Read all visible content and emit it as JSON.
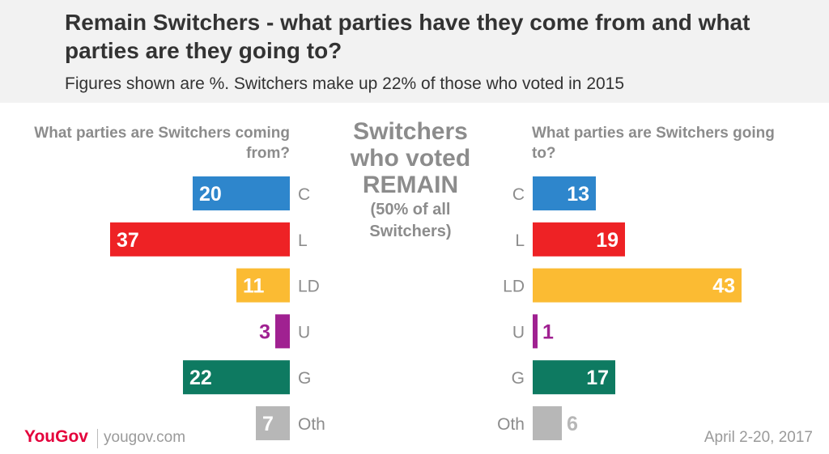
{
  "header": {
    "title": "Remain Switchers - what parties have they come from and what parties are they going to?",
    "subtitle": "Figures shown are %. Switchers make up 22% of those who voted in 2015"
  },
  "center": {
    "line1": "Switchers",
    "line2": "who voted",
    "line3": "REMAIN",
    "sub1": "(50% of all",
    "sub2": "Switchers)"
  },
  "footer": {
    "brand": "YouGov",
    "url": "yougov.com",
    "date": "April 2-20, 2017"
  },
  "chart_data": [
    {
      "type": "bar",
      "orientation": "horizontal",
      "direction": "right-to-left",
      "title": "What parties are Switchers coming from?",
      "categories": [
        "C",
        "L",
        "LD",
        "U",
        "G",
        "Oth"
      ],
      "values": [
        20,
        37,
        11,
        3,
        22,
        7
      ],
      "colors": [
        "#2e86cc",
        "#ee2225",
        "#fbbb33",
        "#a02191",
        "#0e7a61",
        "#b7b7b7"
      ]
    },
    {
      "type": "bar",
      "orientation": "horizontal",
      "direction": "left-to-right",
      "title": "What parties are Switchers going to?",
      "categories": [
        "C",
        "L",
        "LD",
        "U",
        "G",
        "Oth"
      ],
      "values": [
        13,
        19,
        43,
        1,
        17,
        6
      ],
      "colors": [
        "#2e86cc",
        "#ee2225",
        "#fbbb33",
        "#a02191",
        "#0e7a61",
        "#b7b7b7"
      ]
    }
  ]
}
